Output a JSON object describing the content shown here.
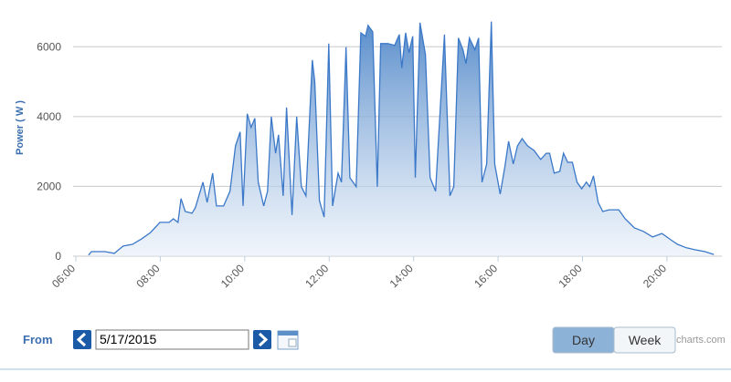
{
  "chart_data": {
    "type": "area",
    "y_label": "Power ( W )",
    "x": [
      6.3,
      6.37,
      6.69,
      6.91,
      7.12,
      7.34,
      7.56,
      7.77,
      7.99,
      8.21,
      8.31,
      8.42,
      8.49,
      8.59,
      8.75,
      8.83,
      9.01,
      9.11,
      9.24,
      9.33,
      9.5,
      9.65,
      9.78,
      9.89,
      9.96,
      10.06,
      10.15,
      10.24,
      10.32,
      10.45,
      10.54,
      10.63,
      10.73,
      10.8,
      10.91,
      10.99,
      11.12,
      11.23,
      11.34,
      11.45,
      11.6,
      11.66,
      11.77,
      11.88,
      11.99,
      12.08,
      12.21,
      12.29,
      12.4,
      12.49,
      12.64,
      12.75,
      12.86,
      12.92,
      13.03,
      13.14,
      13.22,
      13.39,
      13.55,
      13.66,
      13.72,
      13.81,
      13.89,
      13.98,
      14.04,
      14.15,
      14.28,
      14.39,
      14.52,
      14.73,
      14.86,
      14.95,
      15.06,
      15.17,
      15.24,
      15.32,
      15.45,
      15.54,
      15.62,
      15.73,
      15.84,
      15.92,
      16.05,
      16.16,
      16.25,
      16.36,
      16.46,
      16.57,
      16.7,
      16.85,
      17.01,
      17.14,
      17.22,
      17.33,
      17.46,
      17.55,
      17.65,
      17.76,
      17.87,
      17.98,
      18.09,
      18.17,
      18.26,
      18.37,
      18.48,
      18.63,
      18.86,
      19.01,
      19.23,
      19.44,
      19.66,
      19.88,
      20.09,
      20.25,
      20.46,
      20.68,
      20.9,
      21.11
    ],
    "values": [
      30,
      130,
      130,
      80,
      290,
      340,
      500,
      680,
      970,
      970,
      1070,
      970,
      1650,
      1280,
      1230,
      1390,
      2120,
      1540,
      2380,
      1440,
      1440,
      1860,
      3160,
      3560,
      1440,
      4080,
      3690,
      3950,
      2120,
      1440,
      1860,
      4000,
      2950,
      3480,
      1730,
      4260,
      1180,
      4000,
      1990,
      1730,
      5620,
      4990,
      1590,
      1120,
      6090,
      1440,
      2380,
      2120,
      5990,
      2250,
      1990,
      6400,
      6300,
      6610,
      6430,
      1990,
      6090,
      6090,
      6040,
      6350,
      5390,
      6400,
      5830,
      6300,
      2250,
      6690,
      5780,
      2250,
      1860,
      6350,
      1730,
      1990,
      6250,
      5910,
      5520,
      6250,
      5910,
      6250,
      2120,
      2640,
      6720,
      2640,
      1780,
      2560,
      3290,
      2640,
      3160,
      3370,
      3160,
      3030,
      2770,
      2950,
      2950,
      2380,
      2430,
      2950,
      2690,
      2690,
      2120,
      1930,
      2120,
      1990,
      2300,
      1540,
      1280,
      1330,
      1330,
      1070,
      810,
      710,
      550,
      650,
      470,
      340,
      240,
      180,
      130,
      50
    ],
    "color": "#3b78c8",
    "xlim": [
      6,
      21.3
    ],
    "ylim": [
      0,
      7000
    ],
    "xticks": [
      {
        "value": 6,
        "label": "06:00"
      },
      {
        "value": 8,
        "label": "08:00"
      },
      {
        "value": 10,
        "label": "10:00"
      },
      {
        "value": 12,
        "label": "12:00"
      },
      {
        "value": 14,
        "label": "14:00"
      },
      {
        "value": 16,
        "label": "16:00"
      },
      {
        "value": 18,
        "label": "18:00"
      },
      {
        "value": 20,
        "label": "20:00"
      }
    ],
    "yticks": [
      0,
      2000,
      4000,
      6000
    ],
    "grid": true
  },
  "controls": {
    "from_label": "From",
    "date": "5/17/2015",
    "buttons": [
      "Day",
      "Week"
    ],
    "selected": 0,
    "credit": "charts.com"
  }
}
